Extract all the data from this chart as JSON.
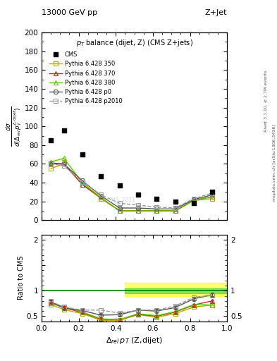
{
  "title_top_left": "13000 GeV pp",
  "title_top_right": "Z+Jet",
  "plot_title": "p_{T} balance (dijet, Z) (CMS Z+jets)",
  "xlabel": "#Delta_{rel} p_{T} (Z,dijet)",
  "ylabel": "d#sigma/d(#Delta_{rel} p_{T}^{Z,dijet})",
  "ratio_ylabel": "Ratio to CMS",
  "right_label1": "Rivet 3.1.10, >= 2.7M events",
  "right_label2": "mcplots.cern.ch [arXiv:1306.3436]",
  "cms_x": [
    0.05,
    0.12,
    0.22,
    0.32,
    0.42,
    0.52,
    0.62,
    0.72,
    0.82,
    0.92
  ],
  "cms_y": [
    85,
    96,
    70,
    47,
    37,
    27,
    23,
    20,
    18,
    30
  ],
  "x_mc": [
    0.05,
    0.12,
    0.22,
    0.32,
    0.42,
    0.52,
    0.62,
    0.72,
    0.82,
    0.92
  ],
  "p350_y": [
    55,
    60,
    38,
    23,
    10,
    10,
    10,
    10,
    21,
    23
  ],
  "p370_y": [
    60,
    60,
    38,
    24,
    10,
    10,
    10,
    10,
    21,
    25
  ],
  "p380_y": [
    62,
    66,
    40,
    24,
    10,
    10,
    10,
    10,
    21,
    25
  ],
  "p0_y": [
    61,
    60,
    42,
    26,
    13,
    13,
    12,
    12,
    22,
    27
  ],
  "p2010_y": [
    60,
    58,
    41,
    27,
    18,
    16,
    14,
    13,
    23,
    29
  ],
  "p350_ratio": [
    0.73,
    0.63,
    0.55,
    0.42,
    0.42,
    0.53,
    0.48,
    0.55,
    0.68,
    0.72
  ],
  "p370_ratio": [
    0.76,
    0.67,
    0.57,
    0.44,
    0.43,
    0.54,
    0.5,
    0.58,
    0.72,
    0.8
  ],
  "p380_ratio": [
    0.76,
    0.69,
    0.58,
    0.45,
    0.43,
    0.55,
    0.51,
    0.59,
    0.73,
    0.72
  ],
  "p0_ratio": [
    0.78,
    0.66,
    0.61,
    0.52,
    0.53,
    0.62,
    0.6,
    0.67,
    0.84,
    0.92
  ],
  "p2010_ratio": [
    0.79,
    0.68,
    0.62,
    0.62,
    0.56,
    0.62,
    0.62,
    0.7,
    0.87,
    0.91
  ],
  "color_350": "#b8a800",
  "color_370": "#cc2222",
  "color_380": "#55cc00",
  "color_p0": "#555555",
  "color_p2010": "#999999",
  "ylim_main": [
    0,
    200
  ],
  "xlim": [
    0.0,
    1.0
  ],
  "yticks_main": [
    0,
    20,
    40,
    60,
    80,
    100,
    120,
    140,
    160,
    180,
    200
  ]
}
